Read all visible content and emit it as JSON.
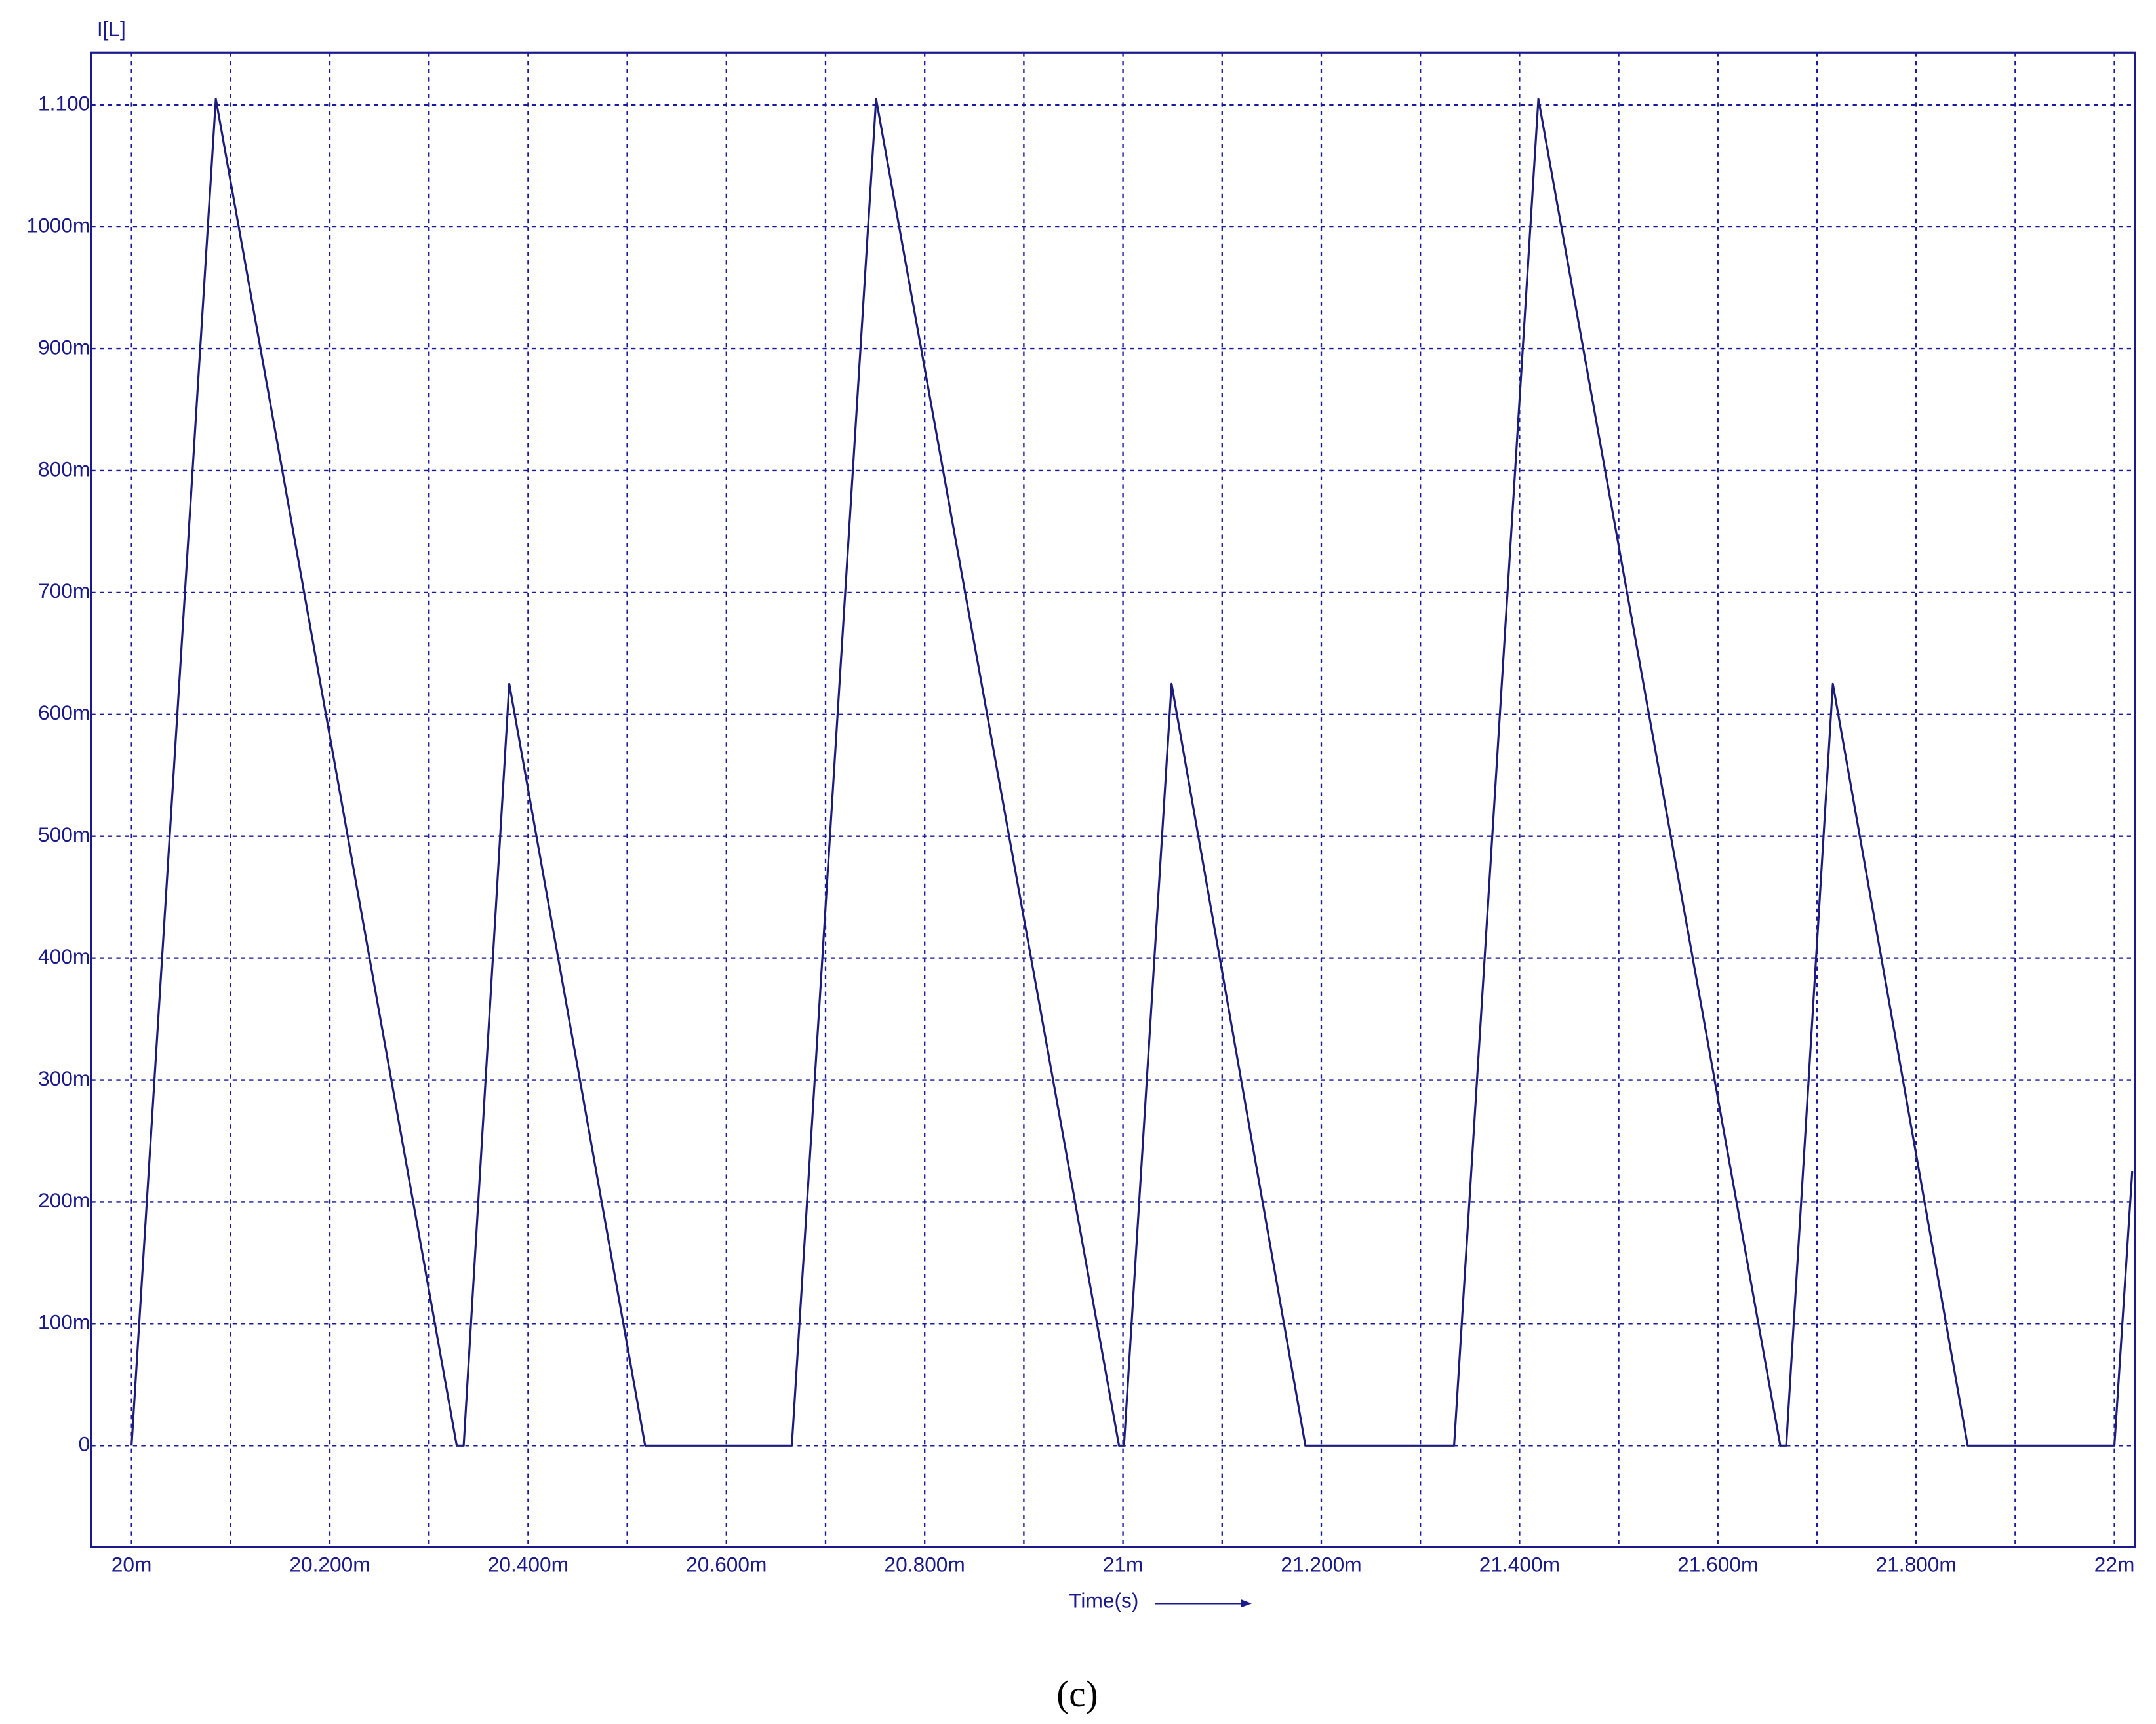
{
  "chart_data": {
    "type": "line",
    "title": "I[L]",
    "xlabel": "Time(s)",
    "caption": "(c)",
    "x": [
      0.02,
      0.020085,
      0.020328,
      0.020335,
      0.020381,
      0.020518,
      0.020666,
      0.020751,
      0.020996,
      0.021001,
      0.021049,
      0.021184,
      0.021334,
      0.021419,
      0.021663,
      0.021669,
      0.021716,
      0.021852,
      0.022,
      0.022018
    ],
    "values": [
      0,
      1.105,
      0,
      0,
      0.625,
      0,
      0,
      1.105,
      0,
      0,
      0.625,
      0,
      0,
      1.105,
      0,
      0,
      0.625,
      0,
      0,
      0.225
    ],
    "color": "#1c1c7a",
    "xlim": [
      0.0199595,
      0.022021
    ],
    "ylim": [
      -0.083,
      1.143
    ],
    "xticks": [
      {
        "value": 0.02,
        "label": "20m"
      },
      {
        "value": 0.0201,
        "label": null
      },
      {
        "value": 0.0202,
        "label": "20.200m"
      },
      {
        "value": 0.0203,
        "label": null
      },
      {
        "value": 0.0204,
        "label": "20.400m"
      },
      {
        "value": 0.0205,
        "label": null
      },
      {
        "value": 0.0206,
        "label": "20.600m"
      },
      {
        "value": 0.0207,
        "label": null
      },
      {
        "value": 0.0208,
        "label": "20.800m"
      },
      {
        "value": 0.0209,
        "label": null
      },
      {
        "value": 0.021,
        "label": "21m"
      },
      {
        "value": 0.0211,
        "label": null
      },
      {
        "value": 0.0212,
        "label": "21.200m"
      },
      {
        "value": 0.0213,
        "label": null
      },
      {
        "value": 0.0214,
        "label": "21.400m"
      },
      {
        "value": 0.0215,
        "label": null
      },
      {
        "value": 0.0216,
        "label": "21.600m"
      },
      {
        "value": 0.0217,
        "label": null
      },
      {
        "value": 0.0218,
        "label": "21.800m"
      },
      {
        "value": 0.0219,
        "label": null
      },
      {
        "value": 0.022,
        "label": "22m"
      }
    ],
    "yticks": [
      0,
      {
        "value": 0.1,
        "label": "100m"
      },
      {
        "value": 0.2,
        "label": "200m"
      },
      {
        "value": 0.3,
        "label": "300m"
      },
      {
        "value": 0.4,
        "label": "400m"
      },
      {
        "value": 0.5,
        "label": "500m"
      },
      {
        "value": 0.6,
        "label": "600m"
      },
      {
        "value": 0.7,
        "label": "700m"
      },
      {
        "value": 0.8,
        "label": "800m"
      },
      {
        "value": 0.9,
        "label": "900m"
      },
      {
        "value": 1.0,
        "label": "1000m"
      },
      {
        "value": 1.1,
        "label": "1.100"
      }
    ],
    "grid": true
  }
}
